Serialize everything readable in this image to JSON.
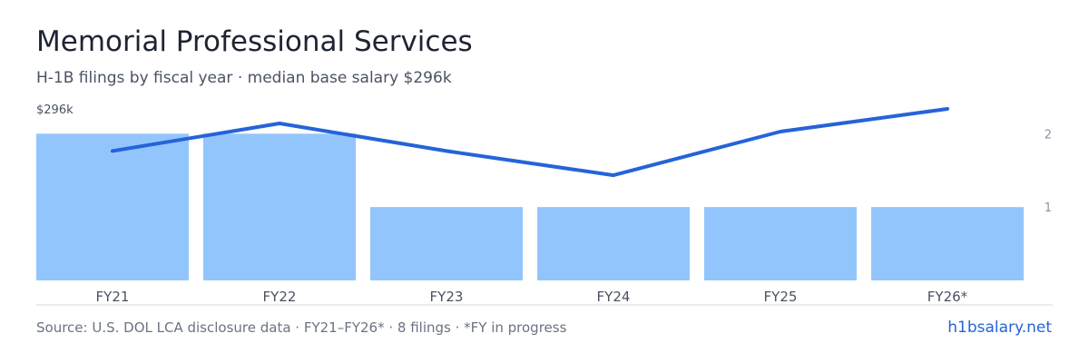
{
  "header": {
    "title": "Memorial Professional Services",
    "subtitle": "H-1B filings by fiscal year · median base salary $296k"
  },
  "footer": {
    "source": "Source: U.S. DOL LCA disclosure data · FY21–FY26* · 8 filings · *FY in progress",
    "brand": "h1bsalary.net"
  },
  "chart_data": {
    "type": "bar",
    "categories": [
      "FY21",
      "FY22",
      "FY23",
      "FY24",
      "FY25",
      "FY26*"
    ],
    "series": [
      {
        "kind": "bar",
        "axis": "right",
        "values": [
          2,
          2,
          1,
          1,
          1,
          1
        ]
      },
      {
        "kind": "line",
        "axis": "left",
        "values": [
          270,
          287,
          270,
          255,
          282,
          296
        ]
      }
    ],
    "left_axis": {
      "label": "$296k"
    },
    "right_axis": {
      "ticks": [
        1,
        2
      ],
      "ylim": [
        0,
        2.4
      ]
    },
    "colors": {
      "bar": "#93c5fd",
      "line": "#2563d8",
      "baseline": "#d5d9df"
    },
    "grid": false,
    "legend": "none"
  }
}
